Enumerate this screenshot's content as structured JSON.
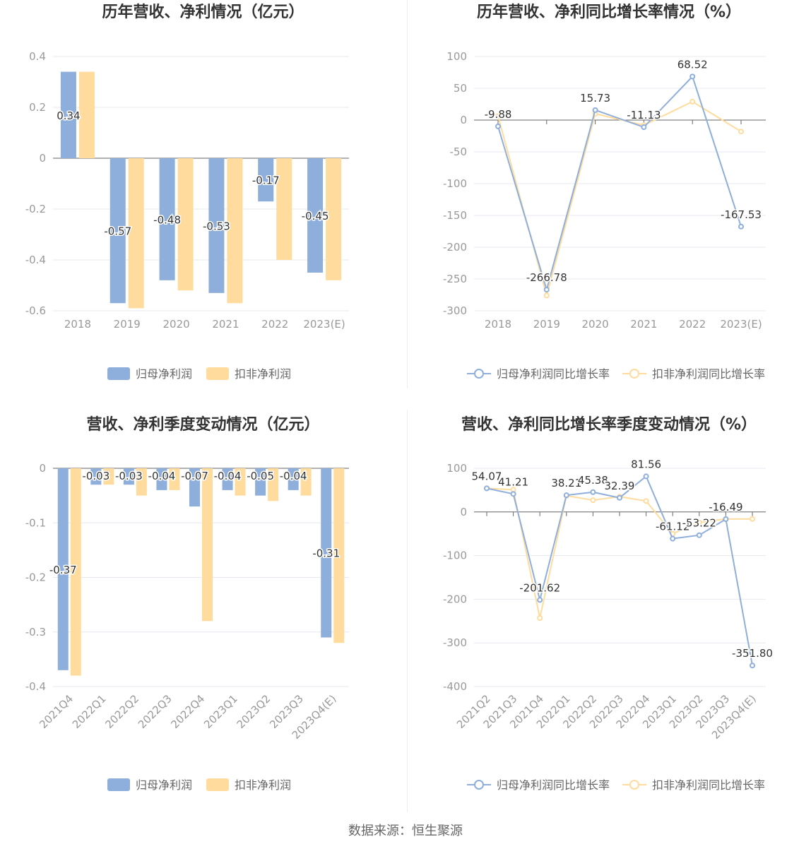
{
  "colors": {
    "primary": "#8eaedb",
    "secondary": "#ffdc9e",
    "axis": "#666666",
    "grid": "#e6e8ef",
    "tick": "#999999",
    "title": "#333333"
  },
  "source": "数据来源：恒生聚源",
  "chart_data": [
    {
      "type": "bar",
      "title": "历年营收、净利情况（亿元）",
      "categories": [
        "2018",
        "2019",
        "2020",
        "2021",
        "2022",
        "2023(E)"
      ],
      "ylim": [
        -0.6,
        0.4
      ],
      "yticks": [
        0.4,
        0.2,
        0,
        -0.2,
        -0.4,
        -0.6
      ],
      "ytick_labels": [
        "0.4",
        "0.2",
        "0",
        "-0.2",
        "-0.4",
        "-0.6"
      ],
      "series": [
        {
          "name": "归母净利润",
          "values": [
            0.34,
            -0.57,
            -0.48,
            -0.53,
            -0.17,
            -0.45
          ],
          "labels": [
            "0.34",
            "-0.57",
            "-0.48",
            "-0.53",
            "-0.17",
            "-0.45"
          ]
        },
        {
          "name": "扣非净利润",
          "values": [
            0.34,
            -0.59,
            -0.52,
            -0.57,
            -0.4,
            -0.48
          ]
        }
      ],
      "legend": "bottom"
    },
    {
      "type": "line",
      "title": "历年营收、净利同比增长率情况（%）",
      "categories": [
        "2018",
        "2019",
        "2020",
        "2021",
        "2022",
        "2023(E)"
      ],
      "ylim": [
        -300,
        100
      ],
      "yticks": [
        100,
        50,
        0,
        -50,
        -100,
        -150,
        -200,
        -250,
        -300
      ],
      "ytick_labels": [
        "100",
        "50",
        "0",
        "-50",
        "-100",
        "-150",
        "-200",
        "-250",
        "-300"
      ],
      "series": [
        {
          "name": "归母净利润同比增长率",
          "values": [
            -9.88,
            -266.78,
            15.73,
            -11.13,
            68.52,
            -167.53
          ],
          "labels": [
            "-9.88",
            "-266.78",
            "15.73",
            "-11.13",
            "68.52",
            "-167.53"
          ]
        },
        {
          "name": "扣非净利润同比增长率",
          "values": [
            6,
            -276,
            10,
            -8,
            29,
            -18
          ]
        }
      ],
      "legend": "bottom"
    },
    {
      "type": "bar",
      "title": "营收、净利季度变动情况（亿元）",
      "categories": [
        "2021Q4",
        "2022Q1",
        "2022Q2",
        "2022Q3",
        "2022Q4",
        "2023Q1",
        "2023Q2",
        "2023Q3",
        "2023Q4(E)"
      ],
      "ylim": [
        -0.4,
        0
      ],
      "yticks": [
        0,
        -0.1,
        -0.2,
        -0.3,
        -0.4
      ],
      "ytick_labels": [
        "0",
        "-0.1",
        "-0.2",
        "-0.3",
        "-0.4"
      ],
      "series": [
        {
          "name": "归母净利润",
          "values": [
            -0.37,
            -0.03,
            -0.03,
            -0.04,
            -0.07,
            -0.04,
            -0.05,
            -0.04,
            -0.31
          ],
          "labels": [
            "-0.37",
            "-0.03",
            "-0.03",
            "-0.04",
            "-0.07",
            "-0.04",
            "-0.05",
            "-0.04",
            "-0.31"
          ]
        },
        {
          "name": "扣非净利润",
          "values": [
            -0.38,
            -0.03,
            -0.05,
            -0.04,
            -0.28,
            -0.05,
            -0.06,
            -0.05,
            -0.32
          ]
        }
      ],
      "legend": "bottom"
    },
    {
      "type": "line",
      "title": "营收、净利同比增长率季度变动情况（%）",
      "categories": [
        "2021Q2",
        "2021Q3",
        "2021Q4",
        "2022Q1",
        "2022Q2",
        "2022Q3",
        "2022Q4",
        "2023Q1",
        "2023Q2",
        "2023Q3",
        "2023Q4(E)"
      ],
      "ylim": [
        -400,
        100
      ],
      "yticks": [
        100,
        0,
        -100,
        -200,
        -300,
        -400
      ],
      "ytick_labels": [
        "100",
        "0",
        "-100",
        "-200",
        "-300",
        "-400"
      ],
      "series": [
        {
          "name": "归母净利润同比增长率",
          "values": [
            54.07,
            41.21,
            -201.62,
            38.21,
            45.38,
            32.39,
            81.56,
            -61.12,
            -53.22,
            -16.49,
            -351.8
          ],
          "labels": [
            "54.07",
            "41.21",
            "-201.62",
            "38.21",
            "45.38",
            "32.39",
            "81.56",
            "-61.12",
            "-53.22",
            "-16.49",
            "-351.80"
          ]
        },
        {
          "name": "扣非净利润同比增长率",
          "values": [
            54,
            51,
            -243,
            37,
            27,
            35,
            25,
            -50,
            -24,
            -16,
            -16
          ]
        }
      ],
      "legend": "bottom"
    }
  ]
}
